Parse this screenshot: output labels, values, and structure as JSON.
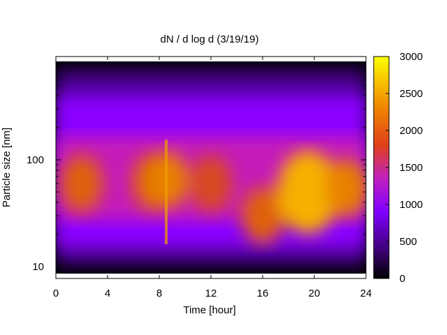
{
  "chart_data": {
    "type": "heatmap",
    "title": "dN / d log d (3/19/19)",
    "xlabel": "Time [hour]",
    "ylabel": "Particle size [nm]",
    "x_ticks": [
      0,
      4,
      8,
      12,
      16,
      20,
      24
    ],
    "xlim": [
      0,
      24
    ],
    "y_scale": "log",
    "ylim": [
      8,
      900
    ],
    "y_ticks": [
      10,
      100
    ],
    "colorbar": {
      "range": [
        0,
        3000
      ],
      "ticks": [
        0,
        500,
        1000,
        1500,
        2000,
        2500,
        3000
      ],
      "palette": [
        "#000000",
        "#3a0070",
        "#8000ff",
        "#c020c0",
        "#e0401a",
        "#f08a00",
        "#ffff00"
      ]
    },
    "features": [
      {
        "hour": 2.0,
        "size_nm": 60,
        "level": 1800
      },
      {
        "hour": 7.5,
        "size_nm": 62,
        "level": 1750
      },
      {
        "hour": 8.6,
        "size_nm": 65,
        "level": 2100
      },
      {
        "hour": 12.0,
        "size_nm": 60,
        "level": 1500
      },
      {
        "hour": 16.0,
        "size_nm": 30,
        "level": 1850
      },
      {
        "hour": 19.5,
        "size_nm": 50,
        "level": 2400
      },
      {
        "hour": 22.5,
        "size_nm": 55,
        "level": 2050
      }
    ],
    "grid": false,
    "legend": "colorbar-right"
  }
}
